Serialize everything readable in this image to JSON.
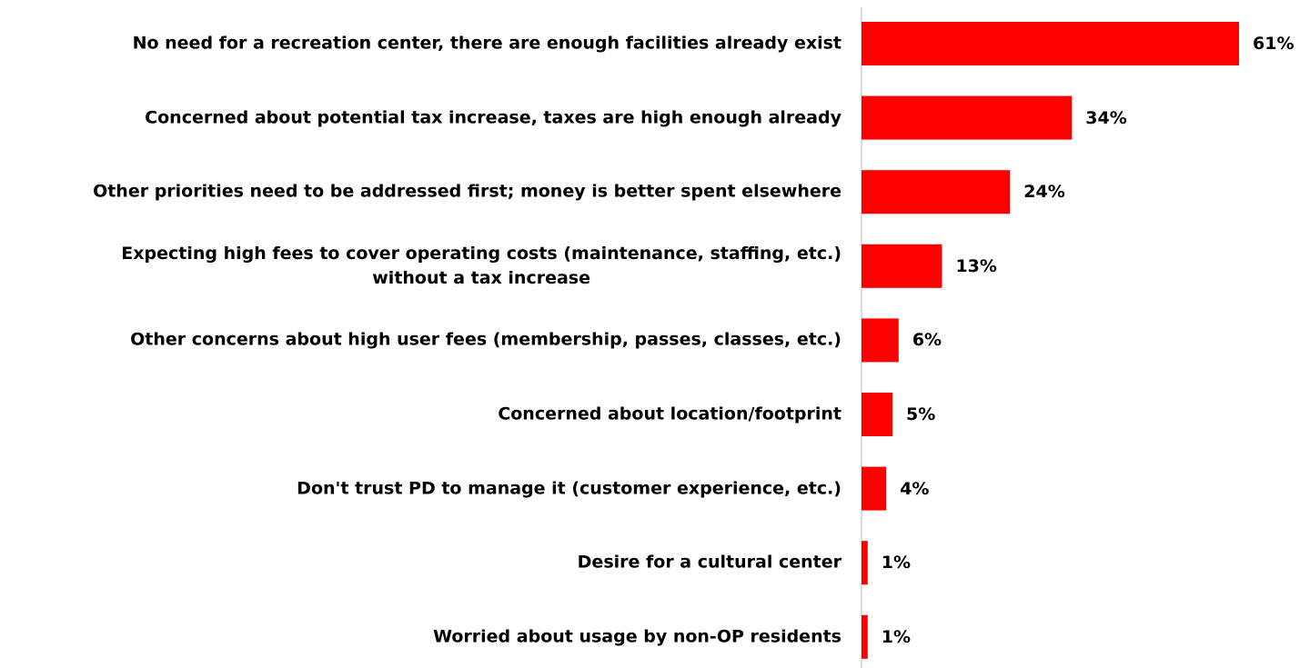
{
  "chart_data": {
    "type": "barh",
    "categories": [
      "No need for a recreation center, there are enough facilities already exist",
      "Concerned about potential tax increase, taxes are high enough already",
      "Other priorities need to be addressed first; money is better spent elsewhere",
      "Expecting high fees to cover operating costs (maintenance, staffing, etc.)\nwithout a tax increase",
      "Other concerns about high user fees (membership, passes, classes, etc.)",
      "Concerned about location/footprint",
      "Don't trust PD to manage it (customer experience, etc.)",
      "Desire for a cultural center",
      "Worried about usage by non-OP residents"
    ],
    "values": [
      61,
      34,
      24,
      13,
      6,
      5,
      4,
      1,
      1
    ],
    "value_labels": [
      "61%",
      "34%",
      "24%",
      "13%",
      "6%",
      "5%",
      "4%",
      "1%",
      "1%"
    ],
    "color": "#ff0000"
  }
}
